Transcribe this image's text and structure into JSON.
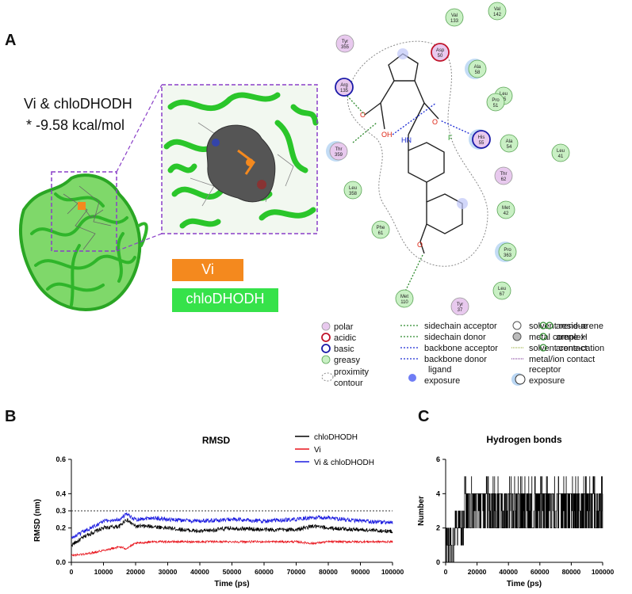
{
  "panel_a": {
    "letter": "A",
    "complex_line1": "Vi & chloDHODH",
    "complex_line2": "* -9.58 kcal/mol",
    "label_vi": "Vi",
    "label_protein": "chloDHODH",
    "colors": {
      "vi": "#f4891e",
      "protein": "#36e24a",
      "dash_box": "#8a3fc8"
    }
  },
  "interaction_diagram": {
    "residues": [
      {
        "name": "Val",
        "num": "133",
        "type": "greasy"
      },
      {
        "name": "Val",
        "num": "142",
        "type": "greasy"
      },
      {
        "name": "Tyr",
        "num": "355",
        "type": "polar"
      },
      {
        "name": "Asp",
        "num": "50",
        "type": "acidic"
      },
      {
        "name": "Ala",
        "num": "58",
        "type": "greasy"
      },
      {
        "name": "Arg",
        "num": "135",
        "type": "basic"
      },
      {
        "name": "Leu",
        "num": "45",
        "type": "greasy"
      },
      {
        "name": "Pro",
        "num": "51",
        "type": "greasy"
      },
      {
        "name": "His",
        "num": "55",
        "type": "basic"
      },
      {
        "name": "Ala",
        "num": "54",
        "type": "greasy"
      },
      {
        "name": "Leu",
        "num": "41",
        "type": "greasy"
      },
      {
        "name": "Thr",
        "num": "359",
        "type": "polar"
      },
      {
        "name": "Thr",
        "num": "62",
        "type": "polar"
      },
      {
        "name": "Leu",
        "num": "358",
        "type": "greasy"
      },
      {
        "name": "Met",
        "num": "42",
        "type": "greasy"
      },
      {
        "name": "Phe",
        "num": "61",
        "type": "greasy"
      },
      {
        "name": "Pro",
        "num": "363",
        "type": "greasy"
      },
      {
        "name": "Met",
        "num": "110",
        "type": "greasy"
      },
      {
        "name": "Tyr",
        "num": "37",
        "type": "polar"
      },
      {
        "name": "Leu",
        "num": "67",
        "type": "greasy"
      }
    ],
    "atoms": {
      "o1": "O",
      "oh": "OH",
      "nh": "HN",
      "o2": "O",
      "f": "F",
      "o3": "O"
    },
    "legend": {
      "col1": [
        "polar",
        "acidic",
        "basic",
        "greasy",
        "proximity",
        "contour"
      ],
      "col2": [
        "sidechain acceptor",
        "sidechain donor",
        "backbone acceptor",
        "backbone donor",
        "ligand",
        "exposure"
      ],
      "col3": [
        "solvent residue",
        "metal complex",
        "solvent contact",
        "metal/ion contact",
        "receptor",
        "exposure"
      ],
      "col4": [
        "arene-arene",
        "arene-H",
        "arene-cation"
      ]
    }
  },
  "panel_b": {
    "letter": "B",
    "title": "RMSD",
    "xlabel": "Time (ps)",
    "ylabel": "RMSD (nm)",
    "legend": [
      "chloDHODH",
      "Vi",
      "Vi & chloDHODH"
    ]
  },
  "panel_c": {
    "letter": "C",
    "title": "Hydrogen bonds",
    "xlabel": "Time (ps)",
    "ylabel": "Number"
  },
  "chart_data": [
    {
      "type": "line",
      "title": "RMSD",
      "xlabel": "Time (ps)",
      "ylabel": "RMSD (nm)",
      "xlim": [
        0,
        100000
      ],
      "ylim": [
        0,
        0.6
      ],
      "xticks": [
        "0",
        "10000",
        "20000",
        "30000",
        "40000",
        "50000",
        "60000",
        "70000",
        "80000",
        "90000",
        "100000"
      ],
      "yticks": [
        "0.0",
        "0.2",
        "0.3",
        "0.4",
        "0.6"
      ],
      "reference_line": 0.3,
      "x": [
        0,
        5000,
        10000,
        15000,
        17000,
        20000,
        25000,
        30000,
        40000,
        50000,
        60000,
        70000,
        75000,
        80000,
        90000,
        100000
      ],
      "series": [
        {
          "name": "chloDHODH",
          "color": "#000000",
          "values": [
            0.1,
            0.16,
            0.2,
            0.21,
            0.25,
            0.21,
            0.21,
            0.2,
            0.18,
            0.2,
            0.19,
            0.19,
            0.21,
            0.2,
            0.19,
            0.18
          ]
        },
        {
          "name": "Vi",
          "color": "#e8141c",
          "values": [
            0.04,
            0.05,
            0.07,
            0.09,
            0.08,
            0.11,
            0.12,
            0.12,
            0.12,
            0.12,
            0.12,
            0.12,
            0.11,
            0.12,
            0.12,
            0.12
          ]
        },
        {
          "name": "Vi & chloDHODH",
          "color": "#1c1ce0",
          "values": [
            0.14,
            0.19,
            0.24,
            0.25,
            0.28,
            0.25,
            0.26,
            0.25,
            0.24,
            0.25,
            0.24,
            0.25,
            0.26,
            0.26,
            0.24,
            0.23
          ]
        }
      ]
    },
    {
      "type": "line",
      "title": "Hydrogen bonds",
      "xlabel": "Time (ps)",
      "ylabel": "Number",
      "xlim": [
        0,
        100000
      ],
      "ylim": [
        0,
        6
      ],
      "xticks": [
        "0",
        "20000",
        "40000",
        "60000",
        "80000",
        "100000"
      ],
      "yticks": [
        "0",
        "2",
        "4",
        "6"
      ],
      "series": [
        {
          "name": "Hydrogen bonds",
          "color": "#000000",
          "x": [
            0,
            5000,
            10000,
            20000,
            30000,
            40000,
            50000,
            60000,
            70000,
            80000,
            90000,
            100000
          ],
          "values": [
            1,
            2,
            3,
            3,
            3,
            3,
            3,
            3,
            3,
            3,
            3,
            3
          ]
        }
      ]
    }
  ]
}
